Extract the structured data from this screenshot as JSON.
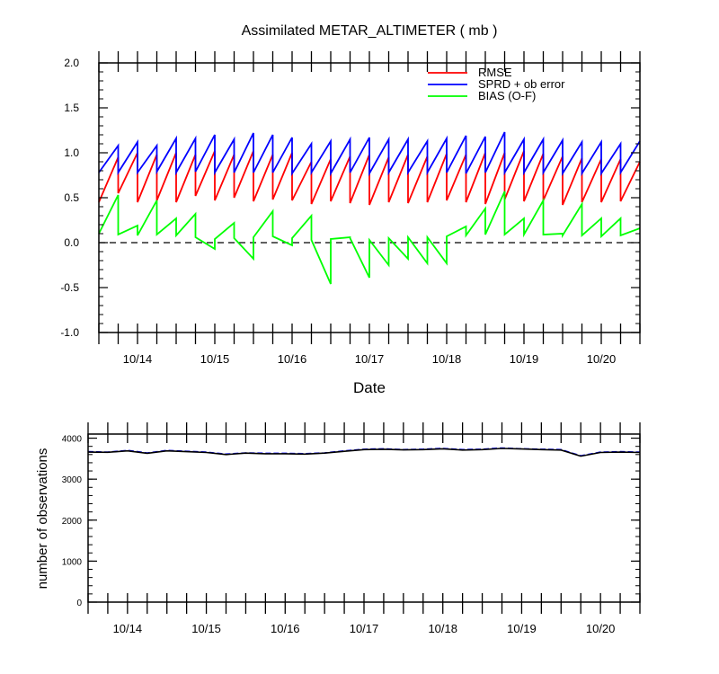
{
  "chart_data": [
    {
      "type": "line",
      "title": "Assimilated METAR_ALTIMETER ( mb )",
      "xlabel": "Date",
      "ylabel": "",
      "xlim": [
        13.5,
        20.5
      ],
      "ylim": [
        -1.0,
        2.0
      ],
      "yticks": [
        "-1.0",
        "-0.5",
        "0.0",
        "0.5",
        "1.0",
        "1.5",
        "2.0"
      ],
      "xtick_labels": [
        "10/14",
        "10/15",
        "10/16",
        "10/17",
        "10/18",
        "10/19",
        "10/20"
      ],
      "zero_line": "dashed",
      "legend_position": "top-right",
      "series": [
        {
          "name": "RMSE",
          "color": "#ff0000",
          "x": [
            13.5,
            13.75,
            13.75,
            14.0,
            14.0,
            14.25,
            14.25,
            14.5,
            14.5,
            14.75,
            14.75,
            15.0,
            15.0,
            15.25,
            15.25,
            15.5,
            15.5,
            15.75,
            15.75,
            16.0,
            16.0,
            16.25,
            16.25,
            16.5,
            16.5,
            16.75,
            16.75,
            17.0,
            17.0,
            17.25,
            17.25,
            17.5,
            17.5,
            17.75,
            17.75,
            18.0,
            18.0,
            18.25,
            18.25,
            18.5,
            18.5,
            18.75,
            18.75,
            19.0,
            19.0,
            19.25,
            19.25,
            19.5,
            19.5,
            19.75,
            19.75,
            20.0,
            20.0,
            20.25,
            20.25,
            20.5
          ],
          "y": [
            0.45,
            0.95,
            0.55,
            1.0,
            0.45,
            0.98,
            0.47,
            1.0,
            0.45,
            0.98,
            0.52,
            1.02,
            0.47,
            0.98,
            0.5,
            1.02,
            0.46,
            0.98,
            0.48,
            1.0,
            0.47,
            0.9,
            0.43,
            0.93,
            0.46,
            0.96,
            0.44,
            0.98,
            0.42,
            0.95,
            0.45,
            0.98,
            0.44,
            0.96,
            0.45,
            0.99,
            0.47,
            0.98,
            0.45,
            1.0,
            0.43,
            1.0,
            0.48,
            1.02,
            0.46,
            0.99,
            0.47,
            0.96,
            0.42,
            0.94,
            0.45,
            0.93,
            0.45,
            0.93,
            0.46,
            0.9
          ]
        },
        {
          "name": "SPRD + ob error",
          "color": "#0000ff",
          "x": [
            13.5,
            13.75,
            13.75,
            14.0,
            14.0,
            14.25,
            14.25,
            14.5,
            14.5,
            14.75,
            14.75,
            15.0,
            15.0,
            15.25,
            15.25,
            15.5,
            15.5,
            15.75,
            15.75,
            16.0,
            16.0,
            16.25,
            16.25,
            16.5,
            16.5,
            16.75,
            16.75,
            17.0,
            17.0,
            17.25,
            17.25,
            17.5,
            17.5,
            17.75,
            17.75,
            18.0,
            18.0,
            18.25,
            18.25,
            18.5,
            18.5,
            18.75,
            18.75,
            19.0,
            19.0,
            19.25,
            19.25,
            19.5,
            19.5,
            19.75,
            19.75,
            20.0,
            20.0,
            20.25,
            20.25,
            20.5
          ],
          "y": [
            0.78,
            1.08,
            0.78,
            1.12,
            0.78,
            1.08,
            0.79,
            1.16,
            0.78,
            1.16,
            0.79,
            1.2,
            0.78,
            1.15,
            0.78,
            1.22,
            0.78,
            1.2,
            0.78,
            1.17,
            0.77,
            1.1,
            0.78,
            1.13,
            0.77,
            1.15,
            0.78,
            1.17,
            0.77,
            1.15,
            0.78,
            1.15,
            0.78,
            1.13,
            0.78,
            1.16,
            0.78,
            1.19,
            0.77,
            1.18,
            0.78,
            1.23,
            0.78,
            1.15,
            0.78,
            1.15,
            0.78,
            1.14,
            0.77,
            1.12,
            0.77,
            1.12,
            0.77,
            1.1,
            0.78,
            1.13
          ]
        },
        {
          "name": "BIAS (O-F)",
          "color": "#00ff00",
          "x": [
            13.5,
            13.75,
            13.75,
            14.0,
            14.0,
            14.25,
            14.25,
            14.5,
            14.5,
            14.75,
            14.75,
            15.0,
            15.0,
            15.25,
            15.25,
            15.5,
            15.5,
            15.75,
            15.75,
            16.0,
            16.0,
            16.25,
            16.25,
            16.5,
            16.5,
            16.75,
            16.75,
            17.0,
            17.0,
            17.25,
            17.25,
            17.5,
            17.5,
            17.75,
            17.75,
            18.0,
            18.0,
            18.25,
            18.25,
            18.5,
            18.5,
            18.75,
            18.75,
            19.0,
            19.0,
            19.25,
            19.25,
            19.5,
            19.5,
            19.75,
            19.75,
            20.0,
            20.0,
            20.25,
            20.25,
            20.5
          ],
          "y": [
            0.1,
            0.53,
            0.09,
            0.19,
            0.08,
            0.47,
            0.09,
            0.27,
            0.08,
            0.32,
            0.06,
            -0.07,
            0.04,
            0.22,
            0.05,
            -0.18,
            0.06,
            0.35,
            0.07,
            -0.03,
            0.05,
            0.3,
            0.03,
            -0.46,
            0.04,
            0.06,
            0.05,
            -0.39,
            0.03,
            -0.25,
            0.05,
            -0.18,
            0.06,
            -0.23,
            0.06,
            -0.23,
            0.07,
            0.18,
            0.08,
            0.38,
            0.09,
            0.57,
            0.09,
            0.27,
            0.09,
            0.47,
            0.09,
            0.1,
            0.08,
            0.43,
            0.08,
            0.27,
            0.07,
            0.27,
            0.08,
            0.16
          ]
        }
      ]
    },
    {
      "type": "line",
      "title": "",
      "xlabel": "",
      "ylabel": "number of observations",
      "xlim": [
        13.5,
        20.5
      ],
      "ylim": [
        0,
        4100
      ],
      "yticks": [
        "0",
        "1000",
        "2000",
        "3000",
        "4000"
      ],
      "xtick_labels": [
        "10/14",
        "10/15",
        "10/16",
        "10/17",
        "10/18",
        "10/19",
        "10/20"
      ],
      "series": [
        {
          "color": "#0000ff",
          "style": "dashed",
          "x": [
            13.5,
            13.75,
            14.0,
            14.25,
            14.5,
            14.75,
            15.0,
            15.25,
            15.5,
            15.75,
            16.0,
            16.25,
            16.5,
            16.75,
            17.0,
            17.25,
            17.5,
            17.75,
            18.0,
            18.25,
            18.5,
            18.75,
            19.0,
            19.25,
            19.5,
            19.75,
            20.0,
            20.25,
            20.5
          ],
          "y": [
            3670,
            3660,
            3700,
            3640,
            3700,
            3680,
            3660,
            3610,
            3640,
            3630,
            3630,
            3620,
            3640,
            3690,
            3730,
            3740,
            3720,
            3730,
            3750,
            3720,
            3730,
            3760,
            3740,
            3730,
            3720,
            3570,
            3660,
            3670,
            3660
          ]
        },
        {
          "color": "#000000",
          "style": "solid",
          "x": [
            13.5,
            13.75,
            14.0,
            14.25,
            14.5,
            14.75,
            15.0,
            15.25,
            15.5,
            15.75,
            16.0,
            16.25,
            16.5,
            16.75,
            17.0,
            17.25,
            17.5,
            17.75,
            18.0,
            18.25,
            18.5,
            18.75,
            19.0,
            19.25,
            19.5,
            19.75,
            20.0,
            20.25,
            20.5
          ],
          "y": [
            3660,
            3655,
            3690,
            3630,
            3690,
            3670,
            3650,
            3600,
            3635,
            3620,
            3620,
            3610,
            3635,
            3680,
            3720,
            3730,
            3715,
            3720,
            3740,
            3710,
            3720,
            3750,
            3735,
            3720,
            3710,
            3560,
            3650,
            3660,
            3650
          ]
        }
      ]
    }
  ]
}
